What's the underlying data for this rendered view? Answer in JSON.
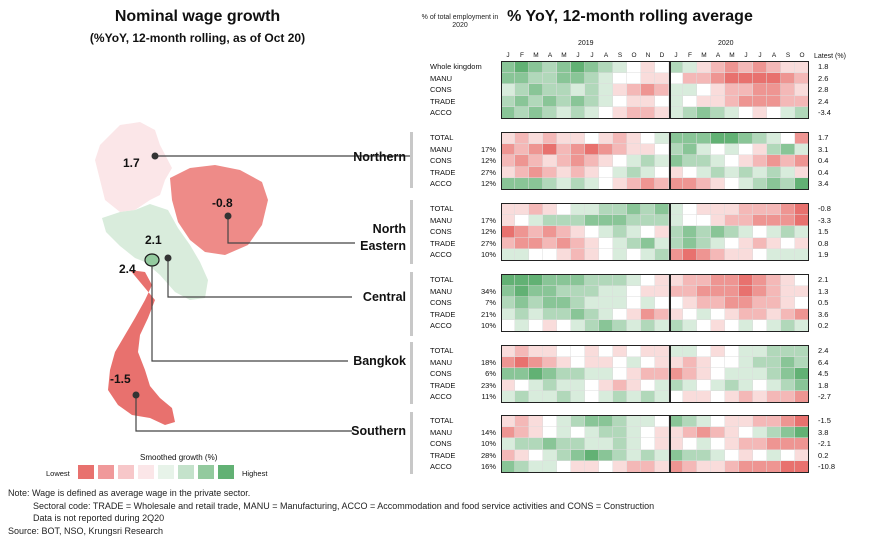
{
  "left_panel": {
    "title": "Nominal wage growth",
    "subtitle": "(%YoY, 12-month rolling, as of Oct 20)",
    "map_labels": [
      {
        "region": "Northern",
        "value": "1.7"
      },
      {
        "region": "North Eastern",
        "value": "-0.8"
      },
      {
        "region": "Central",
        "value": "2.1"
      },
      {
        "region": "Bangkok",
        "value": "2.4"
      },
      {
        "region": "Southern",
        "value": "-1.5"
      }
    ],
    "region_names": [
      "Northern",
      "North\nEastern",
      "Central",
      "Bangkok",
      "Southern"
    ],
    "legend": {
      "title": "Smoothed growth (%)",
      "low": "Lowest",
      "high": "Highest",
      "colors": [
        "#e8716e",
        "#f0999a",
        "#f7c7c9",
        "#fbe6e8",
        "#e7f3e9",
        "#c4e2cb",
        "#93ca9e",
        "#62b174"
      ]
    }
  },
  "right_panel": {
    "title": "% YoY, 12-month rolling average",
    "employment_header": "% of total employment in 2020",
    "latest_header": "Latest (%)",
    "years": [
      "2019",
      "2020"
    ],
    "months": [
      "J",
      "F",
      "M",
      "A",
      "M",
      "J",
      "J",
      "A",
      "S",
      "O",
      "N",
      "D",
      "J",
      "F",
      "M",
      "A",
      "M",
      "J",
      "J",
      "A",
      "S",
      "O"
    ]
  },
  "notes": {
    "line1": "Note: Wage is defined as average wage in the private sector.",
    "line2": "Sectoral code: TRADE = Wholesale and retail trade, MANU = Manufacturing, ACCO = Accommodation and food service activities and CONS = Construction",
    "line3": "Data is not reported during 2Q20",
    "source": "Source: BOT, NSO, Krungsri Research"
  },
  "chart_data": {
    "type": "heatmap",
    "title": "% YoY, 12-month rolling average",
    "x_categories": [
      "J",
      "F",
      "M",
      "A",
      "M",
      "J",
      "J",
      "A",
      "S",
      "O",
      "N",
      "D",
      "J",
      "F",
      "M",
      "A",
      "M",
      "J",
      "J",
      "A",
      "S",
      "O"
    ],
    "x_years": {
      "2019": "J-D",
      "2020": "J-O"
    },
    "color_scale": {
      "low": "#e8716e",
      "mid": "#ffffff",
      "high": "#62b174"
    },
    "groups": [
      {
        "name": "Whole kingdom",
        "rows": [
          {
            "label": "Whole kingdom",
            "share": "",
            "latest": "1.8",
            "levels": [
              3,
              4,
              3,
              2,
              3,
              4,
              3,
              2,
              1,
              0,
              -1,
              0,
              2,
              1,
              -1,
              -2,
              -3,
              -2,
              -3,
              -2,
              -1,
              -1
            ]
          },
          {
            "label": "MANU",
            "share": "",
            "latest": "2.6",
            "levels": [
              3,
              3,
              2,
              2,
              3,
              3,
              2,
              1,
              0,
              0,
              -1,
              -1,
              0,
              -2,
              -2,
              -3,
              -4,
              -4,
              -4,
              -4,
              -3,
              -2
            ]
          },
          {
            "label": "CONS",
            "share": "",
            "latest": "2.8",
            "levels": [
              1,
              2,
              3,
              2,
              2,
              1,
              2,
              1,
              -1,
              -2,
              -3,
              -2,
              1,
              1,
              0,
              -1,
              -2,
              -2,
              -3,
              -3,
              -2,
              -1
            ]
          },
          {
            "label": "TRADE",
            "share": "",
            "latest": "2.4",
            "levels": [
              2,
              3,
              2,
              3,
              2,
              3,
              2,
              1,
              0,
              -1,
              -1,
              0,
              1,
              0,
              -1,
              -1,
              -2,
              -3,
              -3,
              -3,
              -2,
              -2
            ]
          },
          {
            "label": "ACCO",
            "share": "",
            "latest": "-3.4",
            "levels": [
              3,
              2,
              3,
              2,
              1,
              2,
              1,
              0,
              -1,
              -2,
              -2,
              -1,
              1,
              2,
              3,
              2,
              1,
              0,
              -1,
              0,
              1,
              2
            ]
          }
        ]
      },
      {
        "name": "Northern",
        "rows": [
          {
            "label": "TOTAL",
            "share": "",
            "latest": "1.7",
            "levels": [
              -1,
              -2,
              -1,
              -2,
              -1,
              -1,
              0,
              -1,
              -2,
              -1,
              0,
              1,
              3,
              3,
              3,
              4,
              4,
              3,
              2,
              1,
              0,
              -3
            ]
          },
          {
            "label": "MANU",
            "share": "17%",
            "latest": "3.1",
            "levels": [
              -3,
              -2,
              -3,
              -4,
              -2,
              -3,
              -4,
              -3,
              -2,
              -1,
              -1,
              0,
              2,
              3,
              1,
              0,
              1,
              0,
              -1,
              2,
              3,
              1
            ]
          },
          {
            "label": "CONS",
            "share": "12%",
            "latest": "0.4",
            "levels": [
              -2,
              -3,
              -2,
              -1,
              -2,
              -3,
              -2,
              -1,
              0,
              1,
              2,
              1,
              3,
              2,
              2,
              1,
              0,
              -1,
              -2,
              -3,
              -2,
              -3
            ]
          },
          {
            "label": "TRADE",
            "share": "27%",
            "latest": "0.4",
            "levels": [
              -1,
              -2,
              -3,
              -2,
              -1,
              -2,
              -1,
              0,
              1,
              2,
              1,
              0,
              -1,
              0,
              1,
              2,
              1,
              2,
              1,
              2,
              1,
              -1
            ]
          },
          {
            "label": "ACCO",
            "share": "12%",
            "latest": "3.4",
            "levels": [
              3,
              3,
              3,
              2,
              1,
              2,
              1,
              0,
              -1,
              -2,
              -3,
              -2,
              -3,
              -3,
              -2,
              -1,
              0,
              1,
              2,
              3,
              2,
              4
            ]
          }
        ]
      },
      {
        "name": "North Eastern",
        "rows": [
          {
            "label": "TOTAL",
            "share": "",
            "latest": "-0.8",
            "levels": [
              -1,
              -1,
              -2,
              -1,
              0,
              1,
              1,
              2,
              2,
              3,
              2,
              3,
              1,
              0,
              -1,
              -1,
              -1,
              -2,
              -2,
              -2,
              -3,
              -4
            ]
          },
          {
            "label": "MANU",
            "share": "17%",
            "latest": "-3.3",
            "levels": [
              -1,
              0,
              1,
              2,
              2,
              2,
              3,
              3,
              3,
              2,
              2,
              2,
              1,
              0,
              0,
              -1,
              -2,
              -2,
              -3,
              -3,
              -3,
              -4
            ]
          },
          {
            "label": "CONS",
            "share": "12%",
            "latest": "1.5",
            "levels": [
              -4,
              -3,
              -2,
              -3,
              -2,
              -1,
              0,
              1,
              2,
              1,
              0,
              -1,
              2,
              3,
              2,
              3,
              2,
              1,
              0,
              1,
              2,
              1
            ]
          },
          {
            "label": "TRADE",
            "share": "27%",
            "latest": "0.8",
            "levels": [
              -2,
              -3,
              -3,
              -2,
              -3,
              -2,
              -1,
              0,
              1,
              2,
              3,
              1,
              2,
              3,
              2,
              1,
              0,
              -1,
              -2,
              -1,
              0,
              -1
            ]
          },
          {
            "label": "ACCO",
            "share": "10%",
            "latest": "1.9",
            "levels": [
              1,
              1,
              0,
              0,
              -1,
              -2,
              -1,
              0,
              1,
              0,
              1,
              2,
              -3,
              -4,
              -3,
              -2,
              -1,
              -1,
              0,
              1,
              1,
              1
            ]
          }
        ]
      },
      {
        "name": "Central",
        "rows": [
          {
            "label": "TOTAL",
            "share": "",
            "latest": "2.1",
            "levels": [
              4,
              4,
              4,
              3,
              3,
              3,
              2,
              2,
              2,
              1,
              0,
              -1,
              -1,
              -2,
              -2,
              -3,
              -3,
              -4,
              -3,
              -2,
              -1,
              0
            ]
          },
          {
            "label": "MANU",
            "share": "34%",
            "latest": "1.3",
            "levels": [
              3,
              4,
              3,
              3,
              2,
              2,
              2,
              1,
              1,
              0,
              -1,
              -1,
              -2,
              -2,
              -3,
              -3,
              -3,
              -4,
              -3,
              -2,
              -1,
              -1
            ]
          },
          {
            "label": "CONS",
            "share": "7%",
            "latest": "0.5",
            "levels": [
              2,
              3,
              2,
              3,
              3,
              2,
              1,
              1,
              1,
              0,
              1,
              0,
              0,
              -1,
              -2,
              -2,
              -3,
              -3,
              -2,
              -2,
              -1,
              0
            ]
          },
          {
            "label": "TRADE",
            "share": "21%",
            "latest": "3.6",
            "levels": [
              1,
              2,
              1,
              2,
              2,
              3,
              2,
              1,
              0,
              -1,
              -3,
              -2,
              -1,
              0,
              1,
              0,
              -1,
              -2,
              -2,
              -1,
              -2,
              -3
            ]
          },
          {
            "label": "ACCO",
            "share": "10%",
            "latest": "0.2",
            "levels": [
              0,
              1,
              0,
              -1,
              0,
              1,
              2,
              3,
              2,
              1,
              2,
              1,
              2,
              1,
              0,
              -1,
              0,
              1,
              0,
              1,
              2,
              1
            ]
          }
        ]
      },
      {
        "name": "Bangkok",
        "rows": [
          {
            "label": "TOTAL",
            "share": "",
            "latest": "2.4",
            "levels": [
              -1,
              -2,
              -1,
              -1,
              0,
              0,
              -1,
              0,
              -1,
              0,
              -1,
              -1,
              1,
              1,
              0,
              -1,
              0,
              1,
              1,
              2,
              2,
              2
            ]
          },
          {
            "label": "MANU",
            "share": "18%",
            "latest": "6.4",
            "levels": [
              -3,
              -4,
              -3,
              -2,
              -1,
              0,
              -1,
              -1,
              0,
              1,
              0,
              -1,
              -1,
              -2,
              -1,
              0,
              0,
              1,
              2,
              2,
              3,
              2
            ]
          },
          {
            "label": "CONS",
            "share": "6%",
            "latest": "4.5",
            "levels": [
              3,
              3,
              4,
              3,
              2,
              2,
              1,
              1,
              0,
              -1,
              -2,
              -2,
              -3,
              -2,
              -1,
              0,
              1,
              1,
              1,
              2,
              3,
              4
            ]
          },
          {
            "label": "TRADE",
            "share": "23%",
            "latest": "1.8",
            "levels": [
              -1,
              0,
              1,
              2,
              1,
              1,
              0,
              -1,
              -2,
              -1,
              0,
              1,
              2,
              1,
              0,
              1,
              2,
              1,
              0,
              1,
              2,
              3
            ]
          },
          {
            "label": "ACCO",
            "share": "11%",
            "latest": "-2.7",
            "levels": [
              1,
              2,
              1,
              1,
              2,
              1,
              0,
              1,
              2,
              1,
              2,
              1,
              0,
              -1,
              -1,
              0,
              -1,
              -2,
              -1,
              -2,
              -2,
              -3
            ]
          }
        ]
      },
      {
        "name": "Southern",
        "rows": [
          {
            "label": "TOTAL",
            "share": "",
            "latest": "-1.5",
            "levels": [
              -1,
              -2,
              -1,
              0,
              1,
              2,
              3,
              3,
              2,
              1,
              1,
              0,
              3,
              2,
              1,
              0,
              -1,
              -1,
              -2,
              -2,
              -3,
              -4
            ]
          },
          {
            "label": "MANU",
            "share": "14%",
            "latest": "3.8",
            "levels": [
              -3,
              -2,
              -1,
              0,
              1,
              0,
              1,
              2,
              2,
              1,
              0,
              -1,
              -1,
              -2,
              -3,
              -2,
              -1,
              0,
              1,
              2,
              3,
              4
            ]
          },
          {
            "label": "CONS",
            "share": "10%",
            "latest": "-2.1",
            "levels": [
              1,
              2,
              2,
              3,
              2,
              2,
              1,
              1,
              2,
              1,
              0,
              -1,
              -1,
              0,
              1,
              0,
              -1,
              -2,
              -2,
              -3,
              -3,
              -3
            ]
          },
          {
            "label": "TRADE",
            "share": "28%",
            "latest": "0.2",
            "levels": [
              -2,
              -1,
              0,
              1,
              2,
              3,
              4,
              3,
              2,
              1,
              2,
              1,
              3,
              2,
              2,
              1,
              0,
              -1,
              0,
              1,
              0,
              -1
            ]
          },
          {
            "label": "ACCO",
            "share": "16%",
            "latest": "-10.8",
            "levels": [
              3,
              2,
              1,
              1,
              0,
              -1,
              -1,
              0,
              -1,
              -2,
              -2,
              -1,
              -3,
              -2,
              -1,
              -1,
              -2,
              -3,
              -3,
              -3,
              -4,
              -4
            ]
          }
        ]
      }
    ]
  }
}
